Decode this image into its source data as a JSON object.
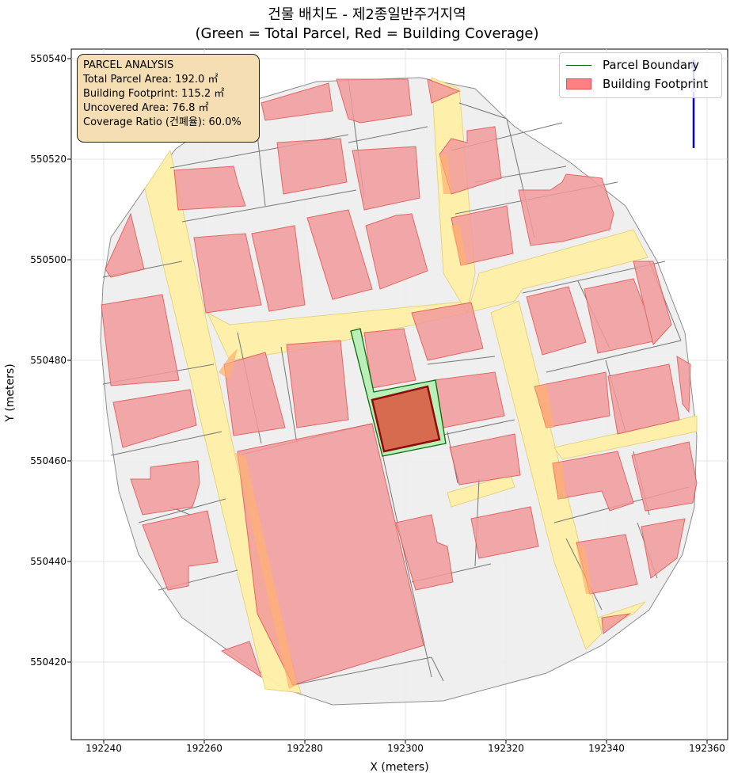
{
  "title_line1": "건물 배치도 - 제2종일반주거지역",
  "title_line2": "(Green = Total Parcel, Red = Building Coverage)",
  "xlabel": "X (meters)",
  "ylabel": "Y (meters)",
  "x_ticks": [
    "192240",
    "192260",
    "192280",
    "192300",
    "192320",
    "192340",
    "192360"
  ],
  "y_ticks": [
    "550540",
    "550520",
    "550500",
    "550480",
    "550460",
    "550440",
    "550420"
  ],
  "info_box": {
    "heading": "PARCEL ANALYSIS",
    "total_area": "Total Parcel Area: 192.0 ㎡",
    "footprint": "Building Footprint: 115.2 ㎡",
    "uncovered": "Uncovered Area: 76.8 ㎡",
    "coverage": "Coverage Ratio (건폐율): 60.0%"
  },
  "legend": {
    "parcel_boundary": "Parcel Boundary",
    "building_footprint": "Building Footprint"
  },
  "colors": {
    "parcel_boundary": "#006400",
    "parcel_fill": "#b8f0b8",
    "target_building": "#d9644a",
    "building_fill": "#f29b9b",
    "road_fill": "#fff0a8",
    "info_bg": "#f5deb3",
    "north_arrow": "#0000dd"
  },
  "map_features": [
    "north-arrow",
    "parcel-boundary",
    "building-footprints",
    "roads"
  ]
}
